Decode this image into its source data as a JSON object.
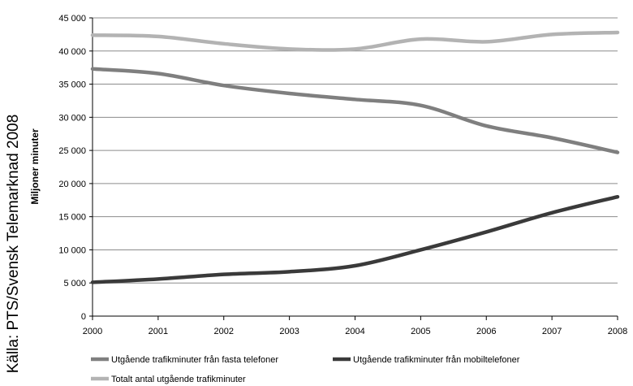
{
  "source_note": "Källa: PTS/Svensk Telemarknad 2008",
  "chart_data": {
    "type": "line",
    "x": [
      2000,
      2001,
      2002,
      2003,
      2004,
      2005,
      2006,
      2007,
      2008
    ],
    "x_tick_labels": [
      "2000",
      "2001",
      "2002",
      "2003",
      "2004",
      "2005",
      "2006",
      "2007",
      "2008"
    ],
    "ylabel": "Miljoner minuter",
    "ylim": [
      0,
      45000
    ],
    "y_ticks": [
      0,
      5000,
      10000,
      15000,
      20000,
      25000,
      30000,
      35000,
      40000,
      45000
    ],
    "y_tick_labels": [
      "0",
      "5 000",
      "10 000",
      "15 000",
      "20 000",
      "25 000",
      "30 000",
      "35 000",
      "40 000",
      "45 000"
    ],
    "grid": "horizontal",
    "legend_position": "bottom",
    "series": [
      {
        "name": "Utgående trafikminuter från fasta telefoner",
        "color": "#7f7f7f",
        "values": [
          37300,
          36600,
          34800,
          33600,
          32700,
          31800,
          28700,
          26900,
          24700
        ]
      },
      {
        "name": "Utgående trafikminuter från mobiltelefoner",
        "color": "#3a3a3a",
        "values": [
          5100,
          5600,
          6300,
          6700,
          7600,
          10000,
          12700,
          15600,
          18000
        ]
      },
      {
        "name": "Totalt antal utgående trafikminuter",
        "color": "#b3b3b3",
        "values": [
          42400,
          42200,
          41100,
          40300,
          40300,
          41800,
          41400,
          42500,
          42800
        ]
      }
    ]
  }
}
